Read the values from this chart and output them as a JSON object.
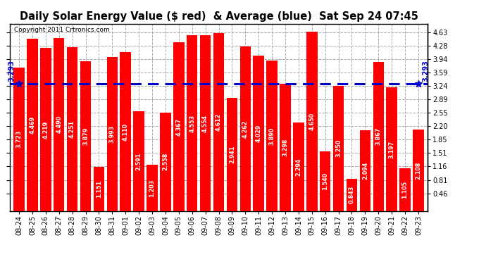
{
  "title": "Daily Solar Energy Value ($ red)  & Average (blue)  Sat Sep 24 07:45",
  "copyright": "Copyright 2011 Crtronics.com",
  "categories": [
    "08-24",
    "08-25",
    "08-26",
    "08-27",
    "08-28",
    "08-29",
    "08-30",
    "08-31",
    "09-01",
    "09-02",
    "09-03",
    "09-04",
    "09-05",
    "09-06",
    "09-07",
    "09-08",
    "09-09",
    "09-10",
    "09-11",
    "09-12",
    "09-13",
    "09-14",
    "09-15",
    "09-16",
    "09-17",
    "09-18",
    "09-19",
    "09-20",
    "09-21",
    "09-22",
    "09-23"
  ],
  "values": [
    3.723,
    4.469,
    4.219,
    4.49,
    4.251,
    3.879,
    1.151,
    3.993,
    4.11,
    2.591,
    1.203,
    2.558,
    4.367,
    4.553,
    4.554,
    4.612,
    2.941,
    4.262,
    4.029,
    3.89,
    3.298,
    2.294,
    4.65,
    1.54,
    3.25,
    0.843,
    2.094,
    3.867,
    3.197,
    1.105,
    2.108
  ],
  "average": 3.293,
  "average_label": "3.293",
  "bar_color": "#ff0000",
  "avg_line_color": "#0000cc",
  "background_color": "#ffffff",
  "plot_bg_color": "#ffffff",
  "grid_color": "#aaaaaa",
  "yticks": [
    0.46,
    0.81,
    1.16,
    1.51,
    1.85,
    2.2,
    2.55,
    2.89,
    3.24,
    3.59,
    3.94,
    4.28,
    4.63
  ],
  "ymin": 0.0,
  "ymax": 4.85,
  "title_fontsize": 10.5,
  "copyright_fontsize": 6.5,
  "bar_label_fontsize": 5.8,
  "tick_fontsize": 7,
  "avg_fontsize": 7
}
